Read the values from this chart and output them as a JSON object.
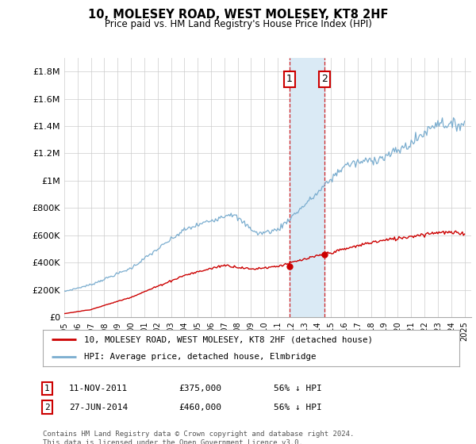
{
  "title": "10, MOLESEY ROAD, WEST MOLESEY, KT8 2HF",
  "subtitle": "Price paid vs. HM Land Registry's House Price Index (HPI)",
  "ylabel_ticks": [
    "£0",
    "£200K",
    "£400K",
    "£600K",
    "£800K",
    "£1M",
    "£1.2M",
    "£1.4M",
    "£1.6M",
    "£1.8M"
  ],
  "ytick_values": [
    0,
    200000,
    400000,
    600000,
    800000,
    1000000,
    1200000,
    1400000,
    1600000,
    1800000
  ],
  "ylim": [
    0,
    1900000
  ],
  "xlim_start": 1995.0,
  "xlim_end": 2025.5,
  "sale1_date": 2011.87,
  "sale1_price": 375000,
  "sale1_label": "1",
  "sale2_date": 2014.49,
  "sale2_price": 460000,
  "sale2_label": "2",
  "sale_color": "#cc0000",
  "hpi_color": "#7aadcf",
  "highlight_fill": "#daeaf5",
  "legend_line1": "10, MOLESEY ROAD, WEST MOLESEY, KT8 2HF (detached house)",
  "legend_line2": "HPI: Average price, detached house, Elmbridge",
  "footnote": "Contains HM Land Registry data © Crown copyright and database right 2024.\nThis data is licensed under the Open Government Licence v3.0.",
  "background_color": "#ffffff"
}
